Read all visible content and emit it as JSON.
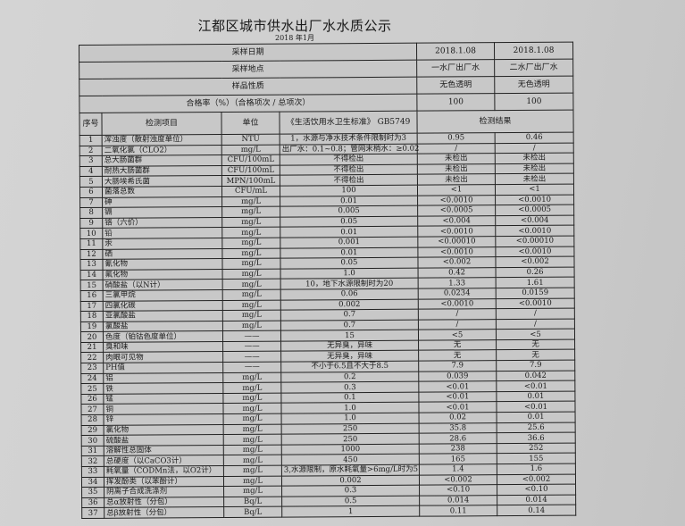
{
  "title": "江都区城市供水出厂水水质公示",
  "subtitle": "2018 年1月",
  "summary": [
    {
      "label": "采样日期",
      "v1": "2018.1.08",
      "v2": "2018.1.08"
    },
    {
      "label": "采样地点",
      "v1": "一水厂出厂水",
      "v2": "二水厂出厂水"
    },
    {
      "label": "样品性质",
      "v1": "无色透明",
      "v2": "无色透明"
    },
    {
      "label": "合格率（%）（合格项次 / 总项次）",
      "v1": "100",
      "v2": "100"
    }
  ],
  "columns": {
    "no": "序号",
    "item": "检测项目",
    "unit": "单位",
    "standard": "《生活饮用水卫生标准》 GB5749",
    "result": "检测结果"
  },
  "rows": [
    {
      "no": "1",
      "item": "浑浊度（散射浊度单位）",
      "unit": "NTU",
      "standard": "1，水源与净水技术条件限制时为3",
      "r1": "0.95",
      "r2": "0.46"
    },
    {
      "no": "2",
      "item": "二氧化氯（CLO2）",
      "unit": "mg/L",
      "standard": "出厂水：0.1~0.8；管网末梢水：≥0.02",
      "r1": "/",
      "r2": "/"
    },
    {
      "no": "3",
      "item": "总大肠菌群",
      "unit": "CFU/100mL",
      "standard": "不得检出",
      "r1": "未检出",
      "r2": "未检出"
    },
    {
      "no": "4",
      "item": "耐热大肠菌群",
      "unit": "CFU/100mL",
      "standard": "不得检出",
      "r1": "未检出",
      "r2": "未检出"
    },
    {
      "no": "5",
      "item": "大肠埃希氏菌",
      "unit": "MPN/100mL",
      "standard": "不得检出",
      "r1": "未检出",
      "r2": "未检出"
    },
    {
      "no": "6",
      "item": "菌落总数",
      "unit": "CFU/mL",
      "standard": "100",
      "r1": "<1",
      "r2": "<1"
    },
    {
      "no": "7",
      "item": "砷",
      "unit": "mg/L",
      "standard": "0.01",
      "r1": "<0.0010",
      "r2": "<0.0010"
    },
    {
      "no": "8",
      "item": "镉",
      "unit": "mg/L",
      "standard": "0.005",
      "r1": "<0.0005",
      "r2": "<0.0005"
    },
    {
      "no": "9",
      "item": "铬（六价）",
      "unit": "mg/L",
      "standard": "0.05",
      "r1": "<0.004",
      "r2": "<0.004"
    },
    {
      "no": "10",
      "item": "铅",
      "unit": "mg/L",
      "standard": "0.01",
      "r1": "<0.0010",
      "r2": "<0.0010"
    },
    {
      "no": "11",
      "item": "汞",
      "unit": "mg/L",
      "standard": "0.001",
      "r1": "<0.00010",
      "r2": "<0.00010"
    },
    {
      "no": "12",
      "item": "硒",
      "unit": "mg/L",
      "standard": "0.01",
      "r1": "<0.0010",
      "r2": "<0.0010"
    },
    {
      "no": "13",
      "item": "氰化物",
      "unit": "mg/L",
      "standard": "0.05",
      "r1": "<0.002",
      "r2": "<0.002"
    },
    {
      "no": "14",
      "item": "氟化物",
      "unit": "mg/L",
      "standard": "1.0",
      "r1": "0.42",
      "r2": "0.26"
    },
    {
      "no": "15",
      "item": "硝酸盐（以N计）",
      "unit": "mg/L",
      "standard": "10，地下水源限制时为20",
      "r1": "1.33",
      "r2": "1.61"
    },
    {
      "no": "16",
      "item": "三氯甲烷",
      "unit": "mg/L",
      "standard": "0.06",
      "r1": "0.0234",
      "r2": "0.0159"
    },
    {
      "no": "17",
      "item": "四氯化碳",
      "unit": "mg/L",
      "standard": "0.002",
      "r1": "<0.0010",
      "r2": "<0.0010"
    },
    {
      "no": "18",
      "item": "亚氯酸盐",
      "unit": "mg/L",
      "standard": "0.7",
      "r1": "/",
      "r2": "/"
    },
    {
      "no": "19",
      "item": "氯酸盐",
      "unit": "mg/L",
      "standard": "0.7",
      "r1": "/",
      "r2": "/"
    },
    {
      "no": "20",
      "item": "色度（铂钴色度单位）",
      "unit": "——",
      "standard": "15",
      "r1": "<5",
      "r2": "<5"
    },
    {
      "no": "21",
      "item": "臭和味",
      "unit": "——",
      "standard": "无异臭，异味",
      "r1": "无",
      "r2": "无"
    },
    {
      "no": "22",
      "item": "肉眼可见物",
      "unit": "——",
      "standard": "无异臭，异味",
      "r1": "无",
      "r2": "无"
    },
    {
      "no": "23",
      "item": "PH值",
      "unit": "——",
      "standard": "不小于6.5且不大于8.5",
      "r1": "7.9",
      "r2": "7.9"
    },
    {
      "no": "24",
      "item": "铝",
      "unit": "mg/L",
      "standard": "0.2",
      "r1": "0.039",
      "r2": "0.042"
    },
    {
      "no": "25",
      "item": "铁",
      "unit": "mg/L",
      "standard": "0.3",
      "r1": "<0.01",
      "r2": "<0.01"
    },
    {
      "no": "26",
      "item": "锰",
      "unit": "mg/L",
      "standard": "0.1",
      "r1": "<0.01",
      "r2": "0.01"
    },
    {
      "no": "27",
      "item": "铜",
      "unit": "mg/L",
      "standard": "1.0",
      "r1": "<0.01",
      "r2": "<0.01"
    },
    {
      "no": "28",
      "item": "锌",
      "unit": "mg/L",
      "standard": "1.0",
      "r1": "0.02",
      "r2": "0.01"
    },
    {
      "no": "29",
      "item": "氯化物",
      "unit": "mg/L",
      "standard": "250",
      "r1": "35.8",
      "r2": "25.6"
    },
    {
      "no": "30",
      "item": "硫酸盐",
      "unit": "mg/L",
      "standard": "250",
      "r1": "28.6",
      "r2": "36.6"
    },
    {
      "no": "31",
      "item": "溶解性总固体",
      "unit": "mg/L",
      "standard": "1000",
      "r1": "238",
      "r2": "252"
    },
    {
      "no": "32",
      "item": "总硬度（以CaCO3计）",
      "unit": "mg/L",
      "standard": "450",
      "r1": "165",
      "r2": "155"
    },
    {
      "no": "33",
      "item": "耗氧量（CODMn法，以O2计）",
      "unit": "mg/L",
      "standard": "3,水源限制，原水耗氧量>6mg/L时为5",
      "r1": "1.4",
      "r2": "1.6"
    },
    {
      "no": "34",
      "item": "挥发酚类（以苯酚计）",
      "unit": "mg/L",
      "standard": "0.002",
      "r1": "<0.002",
      "r2": "<0.002"
    },
    {
      "no": "35",
      "item": "阴离子合成洗涤剂",
      "unit": "mg/L",
      "standard": "0.3",
      "r1": "<0.10",
      "r2": "<0.10"
    },
    {
      "no": "36",
      "item": "总α放射性（分包）",
      "unit": "Bq/L",
      "standard": "0.5",
      "r1": "0.014",
      "r2": "0.014"
    },
    {
      "no": "37",
      "item": "总β放射性（分包）",
      "unit": "Bq/L",
      "standard": "1",
      "r1": "0.11",
      "r2": "0.14"
    }
  ]
}
